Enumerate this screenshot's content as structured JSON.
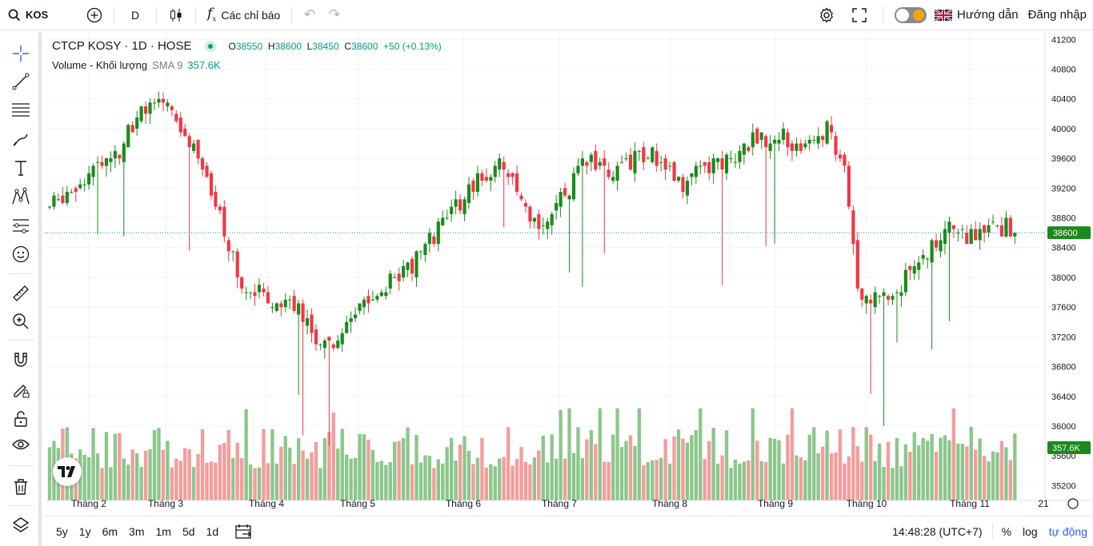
{
  "topbar": {
    "symbol": "KOS",
    "interval": "D",
    "indicators_label": "Các chỉ báo",
    "guide_label": "Hướng dẫn",
    "login_label": "Đăng nhập"
  },
  "legend": {
    "title": "CTCP KOSY · 1D · HOSE",
    "open_key": "O",
    "open": "38550",
    "high_key": "H",
    "high": "38600",
    "low_key": "L",
    "low": "38450",
    "close_key": "C",
    "close": "38600",
    "change": "+50 (+0.13%)",
    "volume_label": "Volume - Khối lượng",
    "sma_label": "SMA 9",
    "volume_value": "357.6K"
  },
  "price_axis": {
    "ticks": [
      "41200",
      "40800",
      "40400",
      "40000",
      "39600",
      "39200",
      "38800",
      "38400",
      "38000",
      "37600",
      "37200",
      "36800",
      "36400",
      "36000",
      "35600",
      "35200"
    ],
    "last_price_label": "38600",
    "volume_label": "357.6K"
  },
  "time_axis": {
    "labels": [
      "Tháng 2",
      "Tháng 3",
      "Tháng 4",
      "Tháng 5",
      "Tháng 6",
      "Tháng 7",
      "Tháng 8",
      "Tháng 9",
      "Tháng 10",
      "Tháng 11",
      "21"
    ]
  },
  "bottombar": {
    "ranges": [
      "5y",
      "1y",
      "6m",
      "3m",
      "1m",
      "5d",
      "1d"
    ],
    "clock": "14:48:28 (UTC+7)",
    "percent_label": "%",
    "log_label": "log",
    "auto_label": "tự động"
  },
  "colors": {
    "up": "#089981",
    "up_candle": "#1a8a1a",
    "down": "#f23645",
    "vol_up": "#8cc68c",
    "vol_down": "#f49c9c",
    "accent": "#2962ff"
  },
  "icons": {
    "left_toolbar": [
      "crosshair-icon",
      "trend-line-icon",
      "horizontal-lines-icon",
      "brush-icon",
      "text-icon",
      "pattern-icon",
      "prediction-icon",
      "emoji-icon",
      "ruler-icon",
      "zoom-in-icon",
      "magnet-icon",
      "lock-drawing-icon",
      "lock-icon",
      "eye-icon",
      "trash-icon",
      "layers-icon"
    ]
  },
  "chart_data": {
    "type": "candlestick",
    "title": "CTCP KOSY · 1D · HOSE",
    "ylim": [
      35000,
      41300
    ],
    "last_price": 38600,
    "x_labels": [
      "Tháng 2",
      "Tháng 3",
      "Tháng 4",
      "Tháng 5",
      "Tháng 6",
      "Tháng 7",
      "Tháng 8",
      "Tháng 9",
      "Tháng 10",
      "Tháng 11"
    ],
    "anchors": [
      [
        0,
        38950
      ],
      [
        8,
        39350
      ],
      [
        16,
        39700
      ],
      [
        20,
        40200
      ],
      [
        27,
        40300
      ],
      [
        33,
        39700
      ],
      [
        40,
        38600
      ],
      [
        45,
        37800
      ],
      [
        53,
        37700
      ],
      [
        57,
        37600
      ],
      [
        62,
        37100
      ],
      [
        68,
        37300
      ],
      [
        74,
        37800
      ],
      [
        82,
        38100
      ],
      [
        90,
        38700
      ],
      [
        96,
        39200
      ],
      [
        103,
        39600
      ],
      [
        110,
        38700
      ],
      [
        116,
        38900
      ],
      [
        123,
        39600
      ],
      [
        130,
        39400
      ],
      [
        137,
        39700
      ],
      [
        145,
        39300
      ],
      [
        152,
        39500
      ],
      [
        160,
        39800
      ],
      [
        167,
        39900
      ],
      [
        172,
        39800
      ],
      [
        178,
        40000
      ],
      [
        182,
        39500
      ],
      [
        185,
        37800
      ],
      [
        192,
        37700
      ],
      [
        200,
        38300
      ],
      [
        206,
        38700
      ],
      [
        212,
        38500
      ],
      [
        217,
        38700
      ],
      [
        221,
        38600
      ]
    ]
  }
}
